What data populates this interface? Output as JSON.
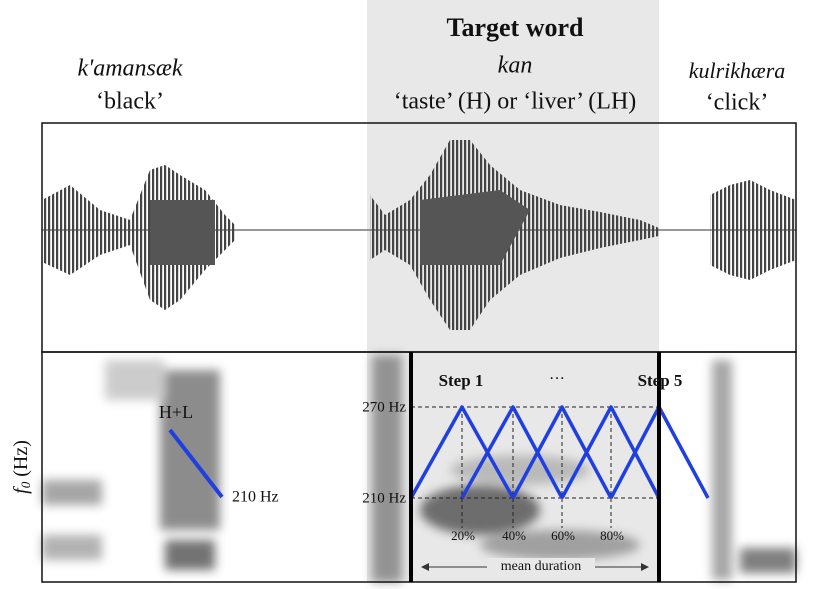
{
  "words": [
    {
      "form": "k'amansæk",
      "gloss": "‘black’"
    },
    {
      "title": "Target word",
      "form": "kan",
      "gloss": "‘taste’ (H) or ‘liver’ (LH)"
    },
    {
      "form": "kulrikhæra",
      "gloss": "‘click’"
    }
  ],
  "y_axis": {
    "symbol": "f",
    "subscript": "0",
    "unit": "(Hz)"
  },
  "annotations": {
    "tone_label": "H+L",
    "tone_end": "210 Hz",
    "step_first": "Step 1",
    "ellipsis": "···",
    "step_last": "Step 5",
    "high": "270 Hz",
    "low": "210 Hz",
    "percents": [
      "20%",
      "40%",
      "60%",
      "80%"
    ],
    "duration": "mean duration"
  }
}
